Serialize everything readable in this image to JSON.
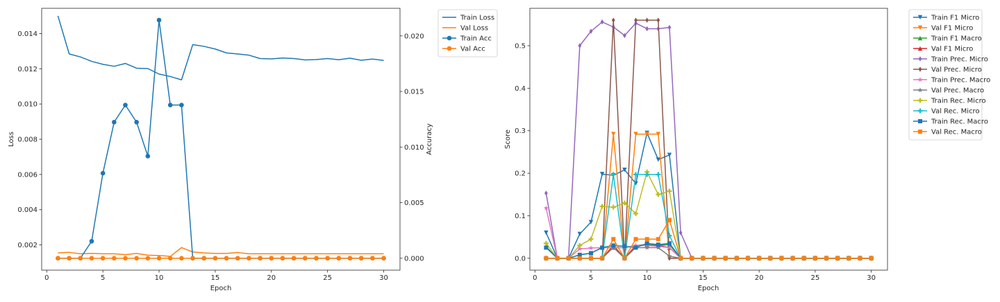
{
  "chart_data": [
    {
      "type": "line",
      "xlabel": "Epoch",
      "ylabel": "Loss",
      "y2label": "Accuracy",
      "x": [
        1,
        2,
        3,
        4,
        5,
        6,
        7,
        8,
        9,
        10,
        11,
        12,
        13,
        14,
        15,
        16,
        17,
        18,
        19,
        20,
        21,
        22,
        23,
        24,
        25,
        26,
        27,
        28,
        29,
        30
      ],
      "xticks": [
        0,
        5,
        10,
        15,
        20,
        25,
        30
      ],
      "xlim": [
        -0.45,
        31.45
      ],
      "ylim": [
        0.00057,
        0.01543
      ],
      "yticks": [
        0.002,
        0.004,
        0.006,
        0.008,
        0.01,
        0.012,
        0.014
      ],
      "y2lim": [
        -0.00107,
        0.02248
      ],
      "y2ticks": [
        0.0,
        0.005,
        0.01,
        0.015,
        0.02
      ],
      "legend_position": "outside-right",
      "series": [
        {
          "name": "Train Loss",
          "axis": "left",
          "color": "#1f77b4",
          "marker": "none",
          "values": [
            0.015,
            0.01284,
            0.01267,
            0.01242,
            0.01225,
            0.01214,
            0.0123,
            0.01203,
            0.01201,
            0.0117,
            0.01156,
            0.01137,
            0.01337,
            0.01327,
            0.01312,
            0.0129,
            0.01284,
            0.01277,
            0.01258,
            0.01256,
            0.01261,
            0.01258,
            0.0125,
            0.01252,
            0.01258,
            0.01251,
            0.0126,
            0.01248,
            0.01255,
            0.01247
          ]
        },
        {
          "name": "Val Loss",
          "axis": "left",
          "color": "#ff7f0e",
          "marker": "none",
          "values": [
            0.00155,
            0.00158,
            0.0015,
            0.00152,
            0.0015,
            0.0015,
            0.00145,
            0.00152,
            0.00142,
            0.0014,
            0.00135,
            0.00185,
            0.0016,
            0.00155,
            0.00152,
            0.00152,
            0.00157,
            0.0015,
            0.0015,
            0.0015,
            0.0015,
            0.0015,
            0.0015,
            0.0015,
            0.0015,
            0.0015,
            0.0015,
            0.0015,
            0.0015,
            0.0015
          ]
        },
        {
          "name": "Train Acc",
          "axis": "right",
          "color": "#1f77b4",
          "marker": "circle",
          "values": [
            0.0,
            0.0,
            0.0,
            0.00153,
            0.00765,
            0.01224,
            0.01378,
            0.01224,
            0.00918,
            0.02142,
            0.01378,
            0.01378,
            0.0,
            0.0,
            0.0,
            0.0,
            0.0,
            0.0,
            0.0,
            0.0,
            0.0,
            0.0,
            0.0,
            0.0,
            0.0,
            0.0,
            0.0,
            0.0,
            0.0,
            0.0
          ]
        },
        {
          "name": "Val Acc",
          "axis": "right",
          "color": "#ff7f0e",
          "marker": "circle",
          "values": [
            0.0,
            0.0,
            0.0,
            0.0,
            0.0,
            0.0,
            0.0,
            0.0,
            0.0,
            0.0,
            0.0,
            0.0,
            0.0,
            0.0,
            0.0,
            0.0,
            0.0,
            0.0,
            0.0,
            0.0,
            0.0,
            0.0,
            0.0,
            0.0,
            0.0,
            0.0,
            0.0,
            0.0,
            0.0,
            0.0
          ]
        }
      ]
    },
    {
      "type": "line",
      "xlabel": "Epoch",
      "ylabel": "Score",
      "x": [
        1,
        2,
        3,
        4,
        5,
        6,
        7,
        8,
        9,
        10,
        11,
        12,
        13,
        14,
        15,
        16,
        17,
        18,
        19,
        20,
        21,
        22,
        23,
        24,
        25,
        26,
        27,
        28,
        29,
        30
      ],
      "xticks": [
        0,
        5,
        10,
        15,
        20,
        25,
        30
      ],
      "xlim": [
        -0.45,
        31.45
      ],
      "ylim": [
        -0.028,
        0.588
      ],
      "yticks": [
        0.0,
        0.1,
        0.2,
        0.3,
        0.4,
        0.5
      ],
      "legend_position": "outside-right",
      "series": [
        {
          "name": "Train F1 Micro",
          "color": "#1f77b4",
          "marker": "triangle-down",
          "values": [
            0.06,
            0.0,
            0.0,
            0.057,
            0.085,
            0.198,
            0.195,
            0.208,
            0.176,
            0.295,
            0.232,
            0.243,
            0.0,
            0.0,
            0.0,
            0.0,
            0.0,
            0.0,
            0.0,
            0.0,
            0.0,
            0.0,
            0.0,
            0.0,
            0.0,
            0.0,
            0.0,
            0.0,
            0.0,
            0.0
          ]
        },
        {
          "name": "Val F1 Micro",
          "color": "#ff7f0e",
          "marker": "triangle-down",
          "values": [
            0.0,
            0.0,
            0.0,
            0.0,
            0.0,
            0.0,
            0.292,
            0.0,
            0.292,
            0.292,
            0.292,
            0.0,
            0.0,
            0.0,
            0.0,
            0.0,
            0.0,
            0.0,
            0.0,
            0.0,
            0.0,
            0.0,
            0.0,
            0.0,
            0.0,
            0.0,
            0.0,
            0.0,
            0.0,
            0.0
          ]
        },
        {
          "name": "Train F1 Macro",
          "color": "#2ca02c",
          "marker": "triangle-up",
          "values": [
            0.027,
            0.0,
            0.0,
            0.008,
            0.012,
            0.025,
            0.025,
            0.025,
            0.03,
            0.032,
            0.03,
            0.032,
            0.0,
            0.0,
            0.0,
            0.0,
            0.0,
            0.0,
            0.0,
            0.0,
            0.0,
            0.0,
            0.0,
            0.0,
            0.0,
            0.0,
            0.0,
            0.0,
            0.0,
            0.0
          ]
        },
        {
          "name": "Val F1 Micro",
          "color": "#d62728",
          "marker": "triangle-up",
          "values": [
            0.0,
            0.0,
            0.0,
            0.0,
            0.0,
            0.0,
            0.03,
            0.0,
            0.03,
            0.03,
            0.03,
            0.025,
            0.0,
            0.0,
            0.0,
            0.0,
            0.0,
            0.0,
            0.0,
            0.0,
            0.0,
            0.0,
            0.0,
            0.0,
            0.0,
            0.0,
            0.0,
            0.0,
            0.0,
            0.0
          ]
        },
        {
          "name": "Train Prec. Micro",
          "color": "#9467bd",
          "marker": "diamond",
          "values": [
            0.153,
            0.0,
            0.0,
            0.5,
            0.534,
            0.556,
            0.544,
            0.524,
            0.553,
            0.54,
            0.54,
            0.543,
            0.06,
            0.0,
            0.0,
            0.0,
            0.0,
            0.0,
            0.0,
            0.0,
            0.0,
            0.0,
            0.0,
            0.0,
            0.0,
            0.0,
            0.0,
            0.0,
            0.0,
            0.0
          ]
        },
        {
          "name": "Val Prec. Micro",
          "color": "#8c564b",
          "marker": "diamond",
          "values": [
            0.0,
            0.0,
            0.0,
            0.0,
            0.0,
            0.0,
            0.56,
            0.0,
            0.56,
            0.56,
            0.56,
            0.0,
            0.0,
            0.0,
            0.0,
            0.0,
            0.0,
            0.0,
            0.0,
            0.0,
            0.0,
            0.0,
            0.0,
            0.0,
            0.0,
            0.0,
            0.0,
            0.0,
            0.0,
            0.0
          ]
        },
        {
          "name": "Train Prec. Macro",
          "color": "#e377c2",
          "marker": "star",
          "values": [
            0.118,
            0.0,
            0.0,
            0.022,
            0.024,
            0.025,
            0.025,
            0.025,
            0.03,
            0.03,
            0.028,
            0.025,
            0.0,
            0.0,
            0.0,
            0.0,
            0.0,
            0.0,
            0.0,
            0.0,
            0.0,
            0.0,
            0.0,
            0.0,
            0.0,
            0.0,
            0.0,
            0.0,
            0.0,
            0.0
          ]
        },
        {
          "name": "Val Prec. Macro",
          "color": "#7f7f7f",
          "marker": "star",
          "values": [
            0.0,
            0.0,
            0.0,
            0.0,
            0.0,
            0.0,
            0.025,
            0.0,
            0.025,
            0.025,
            0.025,
            0.005,
            0.0,
            0.0,
            0.0,
            0.0,
            0.0,
            0.0,
            0.0,
            0.0,
            0.0,
            0.0,
            0.0,
            0.0,
            0.0,
            0.0,
            0.0,
            0.0,
            0.0,
            0.0
          ]
        },
        {
          "name": "Train Rec. Micro",
          "color": "#bcbd22",
          "marker": "plus",
          "values": [
            0.035,
            0.0,
            0.0,
            0.03,
            0.045,
            0.122,
            0.12,
            0.13,
            0.105,
            0.203,
            0.15,
            0.158,
            0.0,
            0.0,
            0.0,
            0.0,
            0.0,
            0.0,
            0.0,
            0.0,
            0.0,
            0.0,
            0.0,
            0.0,
            0.0,
            0.0,
            0.0,
            0.0,
            0.0,
            0.0
          ]
        },
        {
          "name": "Val Rec. Micro",
          "color": "#17becf",
          "marker": "plus",
          "values": [
            0.0,
            0.0,
            0.0,
            0.0,
            0.0,
            0.0,
            0.197,
            0.0,
            0.197,
            0.197,
            0.197,
            0.053,
            0.0,
            0.0,
            0.0,
            0.0,
            0.0,
            0.0,
            0.0,
            0.0,
            0.0,
            0.0,
            0.0,
            0.0,
            0.0,
            0.0,
            0.0,
            0.0,
            0.0,
            0.0
          ]
        },
        {
          "name": "Train Rec. Macro",
          "color": "#1f77b4",
          "marker": "square",
          "values": [
            0.025,
            0.0,
            0.0,
            0.008,
            0.012,
            0.025,
            0.03,
            0.028,
            0.025,
            0.035,
            0.032,
            0.035,
            0.0,
            0.0,
            0.0,
            0.0,
            0.0,
            0.0,
            0.0,
            0.0,
            0.0,
            0.0,
            0.0,
            0.0,
            0.0,
            0.0,
            0.0,
            0.0,
            0.0,
            0.0
          ]
        },
        {
          "name": "Val Rec. Macro",
          "color": "#ff7f0e",
          "marker": "square",
          "values": [
            0.0,
            0.0,
            0.0,
            0.0,
            0.0,
            0.0,
            0.045,
            0.0,
            0.045,
            0.045,
            0.045,
            0.09,
            0.0,
            0.0,
            0.0,
            0.0,
            0.0,
            0.0,
            0.0,
            0.0,
            0.0,
            0.0,
            0.0,
            0.0,
            0.0,
            0.0,
            0.0,
            0.0,
            0.0,
            0.0
          ]
        }
      ]
    }
  ]
}
